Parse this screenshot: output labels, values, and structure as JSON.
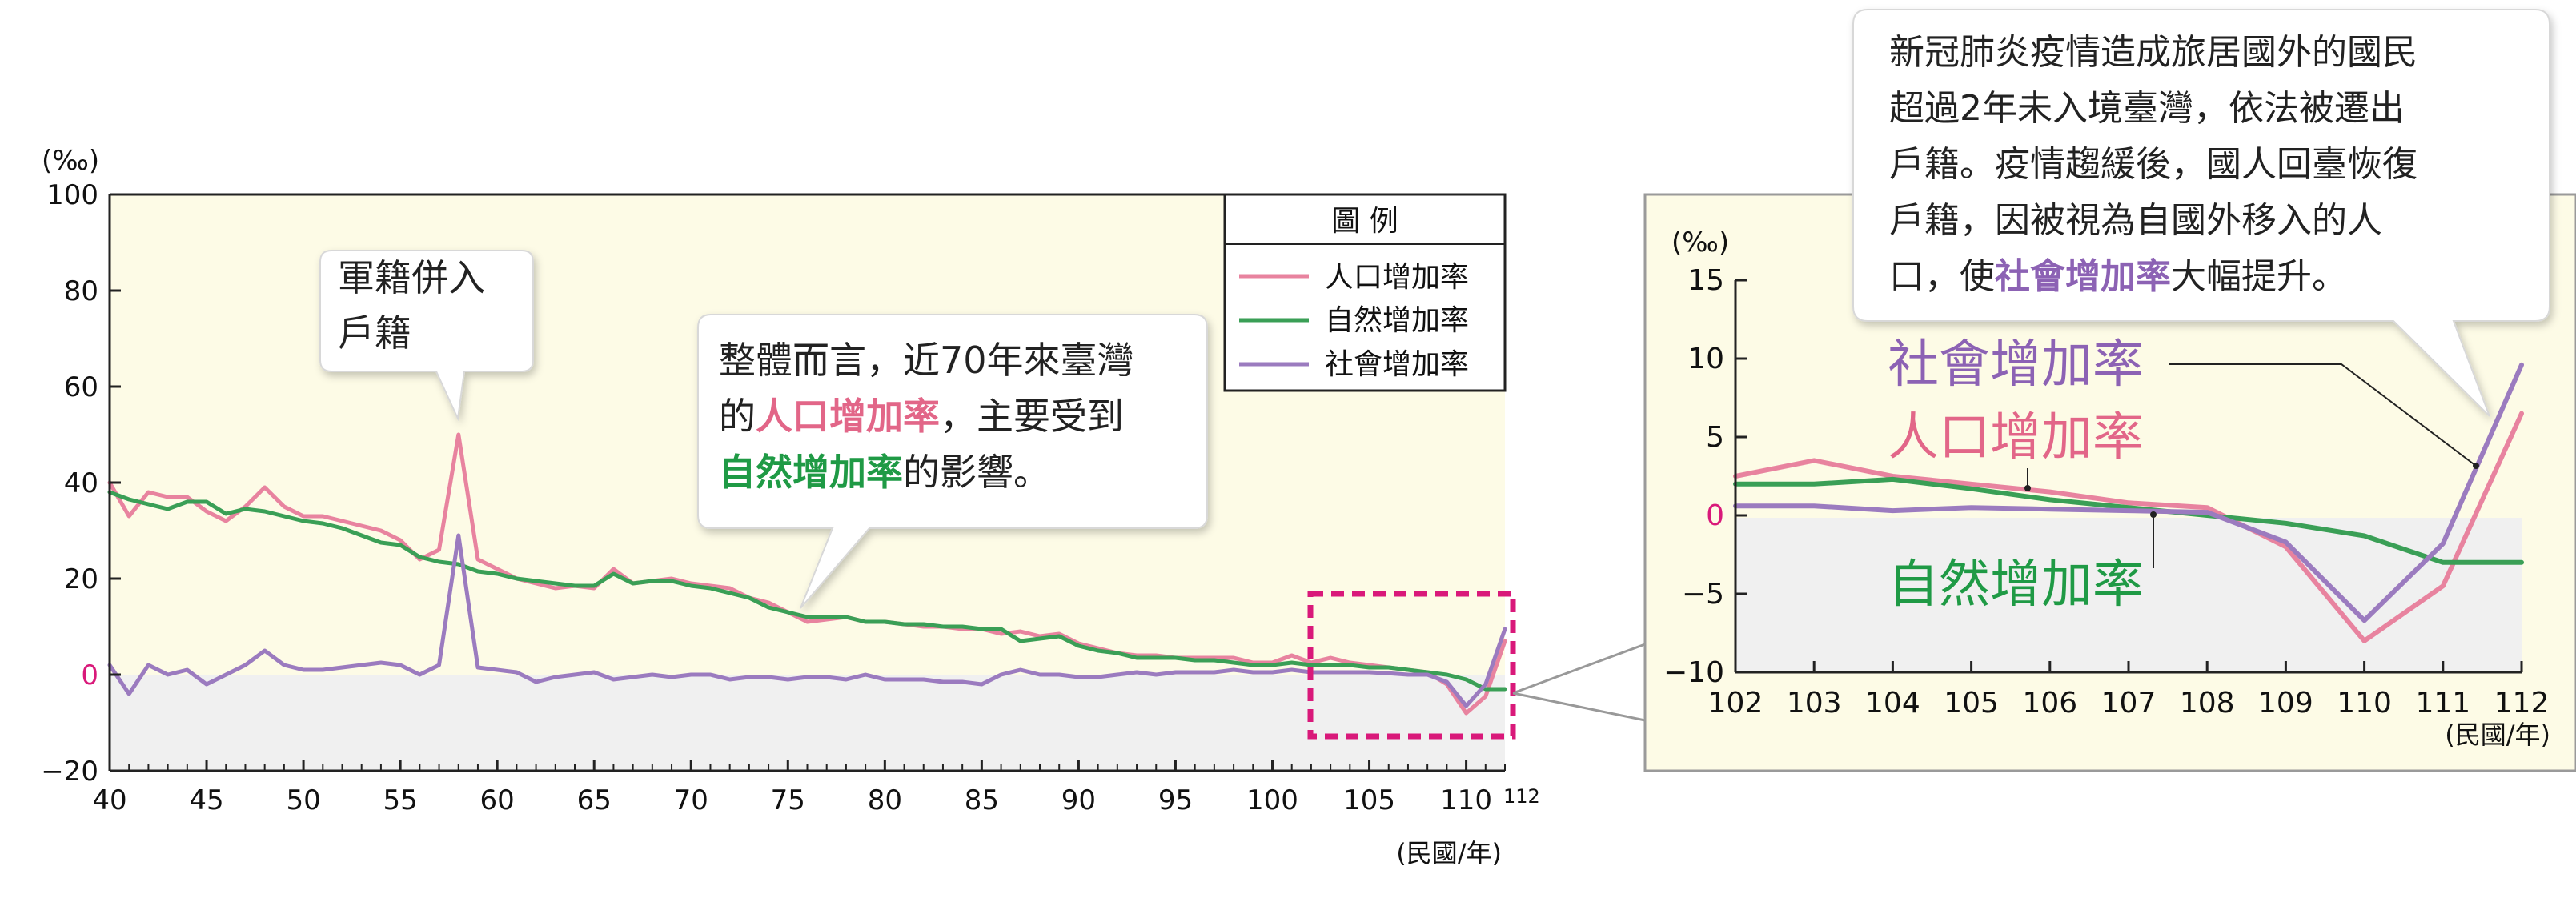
{
  "colors": {
    "population": "#e8839f",
    "natural": "#3a9f56",
    "social": "#9b7bbf",
    "plot_bg": "#fdfbe6",
    "negative_band": "#f0f0f0",
    "highlight": "#d9197a",
    "zero_label": "#d9197a",
    "callout_pink_text": "#e26688",
    "callout_green_text": "#1f9a45",
    "callout_purple_text": "#8c62b4"
  },
  "main_chart": {
    "unit": "(‰)",
    "x_unit": "(民國/年)",
    "end_year_label": "112",
    "legend": {
      "title": "圖 例",
      "items": [
        "人口增加率",
        "自然增加率",
        "社會增加率"
      ]
    },
    "x_ticks": [
      "40",
      "45",
      "50",
      "55",
      "60",
      "65",
      "70",
      "75",
      "80",
      "85",
      "90",
      "95",
      "100",
      "105",
      "110"
    ],
    "y_ticks": [
      "100",
      "80",
      "60",
      "40",
      "20",
      "0",
      "−20"
    ]
  },
  "callouts": {
    "military": {
      "line1": "軍籍併入",
      "line2": "戶籍"
    },
    "summary": {
      "line1": "整體而言，近70年來臺灣",
      "line2_pre": "的",
      "line2_hl": "人口增加率",
      "line2_post": "，主要受到",
      "line3_hl": "自然增加率",
      "line3_post": "的影響。"
    },
    "covid": {
      "line1": "新冠肺炎疫情造成旅居國外的國民",
      "line2": "超過2年未入境臺灣，依法被遷出",
      "line3": "戶籍。疫情趨緩後，國人回臺恢復",
      "line4": "戶籍，因被視為自國外移入的人",
      "line5_pre": "口，使",
      "line5_hl": "社會增加率",
      "line5_post": "大幅提升。"
    }
  },
  "inset_chart": {
    "unit": "(‰)",
    "x_unit": "(民國/年)",
    "x_ticks": [
      "102",
      "103",
      "104",
      "105",
      "106",
      "107",
      "108",
      "109",
      "110",
      "111",
      "112"
    ],
    "y_ticks": [
      "15",
      "10",
      "5",
      "0",
      "−5",
      "−10"
    ],
    "labels": {
      "social": "社會增加率",
      "population": "人口增加率",
      "natural": "自然增加率"
    }
  },
  "chart_data": [
    {
      "type": "line",
      "x": [
        40,
        41,
        42,
        43,
        44,
        45,
        46,
        47,
        48,
        49,
        50,
        51,
        52,
        53,
        54,
        55,
        56,
        57,
        58,
        59,
        60,
        61,
        62,
        63,
        64,
        65,
        66,
        67,
        68,
        69,
        70,
        71,
        72,
        73,
        74,
        75,
        76,
        77,
        78,
        79,
        80,
        81,
        82,
        83,
        84,
        85,
        86,
        87,
        88,
        89,
        90,
        91,
        92,
        93,
        94,
        95,
        96,
        97,
        98,
        99,
        100,
        101,
        102,
        103,
        104,
        105,
        106,
        107,
        108,
        109,
        110,
        111,
        112
      ],
      "series": [
        {
          "name": "人口增加率",
          "values": [
            40,
            33,
            38,
            37,
            37,
            34,
            32,
            35,
            39,
            35,
            33,
            33,
            32,
            31,
            30,
            28,
            24,
            26,
            50,
            24,
            22,
            20,
            19,
            18,
            18.5,
            18,
            22,
            19,
            19.5,
            20,
            19,
            18.5,
            18,
            16,
            15,
            13,
            11,
            11.5,
            12,
            11,
            11,
            10.5,
            10,
            10,
            9.5,
            9.5,
            8.5,
            9,
            8,
            8.5,
            6.5,
            5.5,
            4.5,
            4,
            4,
            3.5,
            3.5,
            3.5,
            3.5,
            2.5,
            2.5,
            4,
            2.5,
            3.5,
            2.5,
            2,
            1.5,
            1,
            0.5,
            -2,
            -8,
            -4.5,
            7
          ]
        },
        {
          "name": "自然增加率",
          "values": [
            38,
            36.5,
            35.5,
            34.5,
            36,
            36,
            33.5,
            34.5,
            34,
            33,
            32,
            31.5,
            30.5,
            29,
            27.5,
            27,
            24.5,
            23.5,
            23,
            21.5,
            21,
            20,
            19.5,
            19,
            18.5,
            18.5,
            21,
            19,
            19.5,
            19.5,
            18.5,
            18,
            17,
            16,
            14,
            13,
            12,
            12,
            12,
            11,
            11,
            10.5,
            10.5,
            10,
            10,
            9.5,
            9.5,
            7,
            7.5,
            8,
            6,
            5,
            4.5,
            3.5,
            3.5,
            3.5,
            3,
            3,
            2.5,
            2,
            2,
            2.5,
            2,
            2,
            2,
            1.5,
            1.5,
            1,
            0.5,
            0,
            -1,
            -3,
            -3
          ]
        },
        {
          "name": "社會增加率",
          "values": [
            2,
            -4,
            2,
            0,
            1,
            -2,
            0,
            2,
            5,
            2,
            1,
            1,
            1.5,
            2,
            2.5,
            2,
            0,
            2,
            29,
            1.5,
            1,
            0.5,
            -1.5,
            -0.5,
            0,
            0.5,
            -1,
            -0.5,
            0,
            -0.5,
            0,
            0,
            -1,
            -0.5,
            -0.5,
            -1,
            -0.5,
            -0.5,
            -1,
            0,
            -1,
            -1,
            -1,
            -1.5,
            -1.5,
            -2,
            0,
            1,
            0,
            0,
            -0.5,
            -0.5,
            0,
            0.5,
            0,
            0.5,
            0.5,
            0.5,
            1,
            0.5,
            0.5,
            1,
            0.5,
            0.5,
            0.5,
            0.5,
            0.3,
            0,
            0,
            -1.5,
            -6.5,
            -2,
            9.5
          ]
        }
      ],
      "xlim": [
        40,
        112
      ],
      "ylim": [
        -20,
        100
      ],
      "ylabel": "(‰)",
      "xlabel": "(民國/年)",
      "legend": "top-right"
    },
    {
      "type": "line",
      "x": [
        102,
        103,
        104,
        105,
        106,
        107,
        108,
        109,
        110,
        111,
        112
      ],
      "series": [
        {
          "name": "人口增加率",
          "values": [
            2.5,
            3.5,
            2.5,
            2,
            1.5,
            0.8,
            0.5,
            -2,
            -8,
            -4.5,
            6.5
          ]
        },
        {
          "name": "自然增加率",
          "values": [
            2,
            2,
            2.3,
            1.7,
            1,
            0.5,
            0,
            -0.5,
            -1.3,
            -3,
            -3
          ]
        },
        {
          "name": "社會增加率",
          "values": [
            0.6,
            0.6,
            0.3,
            0.5,
            0.4,
            0.3,
            0.2,
            -1.7,
            -6.7,
            -1.8,
            9.6
          ]
        }
      ],
      "xlim": [
        102,
        112
      ],
      "ylim": [
        -10,
        15
      ],
      "ylabel": "(‰)",
      "xlabel": "(民國/年)"
    }
  ]
}
